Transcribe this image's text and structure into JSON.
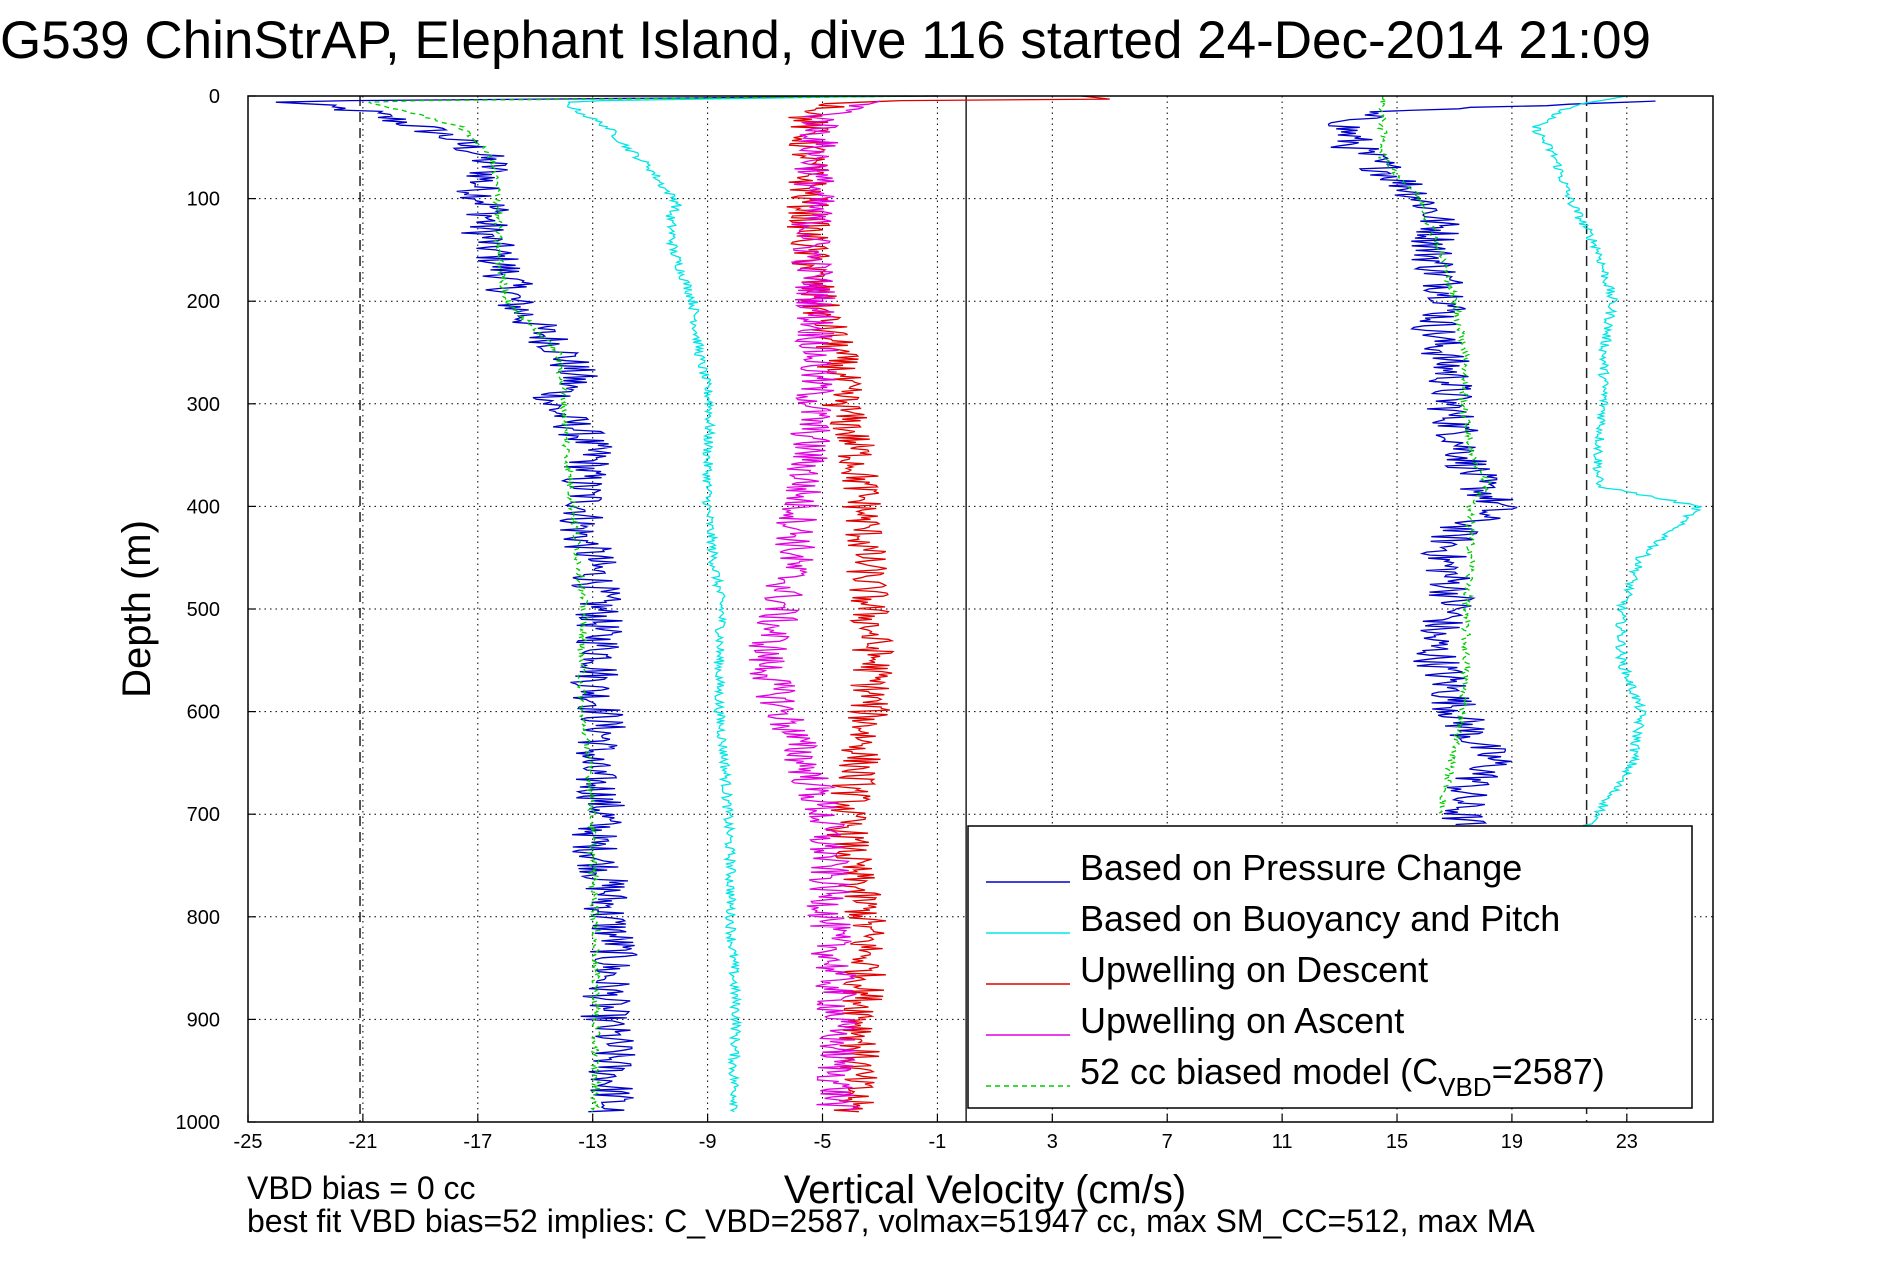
{
  "title": "G539 ChinStrAP, Elephant Island, dive 116 started 24-Dec-2014 21:09",
  "footer": {
    "line1": "VBD bias = 0 cc",
    "line2": "best fit VBD bias=52 implies: C_VBD=2587, volmax=51947 cc, max SM_CC=512, max MA"
  },
  "colors": {
    "pressure": "#0000c8",
    "buoyancy": "#00e5e5",
    "descent": "#e00000",
    "ascent": "#e000e0",
    "model": "#00cc00"
  },
  "chart_data": {
    "type": "line",
    "title": "G539 ChinStrAP, Elephant Island, dive 116 started 24-Dec-2014 21:09",
    "xlabel": "Vertical Velocity (cm/s)",
    "ylabel": "Depth (m)",
    "xlim": [
      -25,
      26
    ],
    "ylim": [
      0,
      1000
    ],
    "y_reversed": true,
    "grid": true,
    "xticks": [
      -25,
      -21,
      -17,
      -13,
      -9,
      -5,
      -1,
      3,
      7,
      11,
      15,
      19,
      23
    ],
    "yticks": [
      0,
      100,
      200,
      300,
      400,
      500,
      600,
      700,
      800,
      900,
      1000
    ],
    "legend_position": "bottom-right",
    "reference_lines": [
      {
        "x": -21.1,
        "style": "dashed"
      },
      {
        "x": 21.6,
        "style": "dashed"
      },
      {
        "x": 0,
        "style": "solid"
      }
    ],
    "series": [
      {
        "name": "Based on Pressure Change",
        "color": "#0000c8",
        "style": "solid",
        "segments": [
          {
            "depth": [
              0,
              5,
              15,
              30,
              40,
              55,
              70,
              90,
              110,
              130,
              150,
              175,
              200,
              225,
              250,
              275,
              300,
              325,
              350,
              375,
              400,
              425,
              450,
              475,
              500,
              525,
              550,
              575,
              600,
              625,
              650,
              675,
              700,
              725,
              750,
              775,
              800,
              825,
              850,
              875,
              900,
              925,
              950,
              975,
              990
            ],
            "velocity": [
              -1,
              -24,
              -21,
              -19,
              -18,
              -17,
              -16.5,
              -17,
              -16.5,
              -16.8,
              -16.5,
              -16,
              -15.8,
              -15,
              -14,
              -13.6,
              -14.5,
              -13.5,
              -13,
              -13.4,
              -13.2,
              -13.5,
              -13,
              -12.9,
              -12.8,
              -12.8,
              -12.6,
              -13,
              -12.7,
              -12.6,
              -13.2,
              -12.8,
              -12.6,
              -13,
              -12.7,
              -12.5,
              -12.5,
              -12.2,
              -12.4,
              -12.5,
              -12.6,
              -12.3,
              -12.4,
              -12.3,
              -12.5
            ]
          },
          {
            "depth": [
              5,
              15,
              30,
              50,
              70,
              90,
              110,
              130,
              150,
              175,
              200,
              225,
              250,
              275,
              300,
              325,
              350,
              375,
              400,
              425,
              450,
              475,
              500,
              525,
              550,
              575,
              600,
              625,
              650,
              675,
              700,
              710
            ],
            "velocity": [
              24,
              14,
              13.2,
              13.5,
              14.5,
              15.5,
              16.2,
              16.5,
              16.2,
              16.5,
              17,
              16.3,
              16.6,
              16.9,
              16.8,
              17.1,
              17.4,
              17.7,
              18.5,
              17,
              16.6,
              16.9,
              17,
              16.2,
              16.4,
              16.8,
              17.1,
              17.6,
              18.4,
              17.4,
              17.2,
              17.4
            ]
          }
        ]
      },
      {
        "name": "Based on Buoyancy and Pitch",
        "color": "#00e5e5",
        "style": "solid",
        "segments": [
          {
            "depth": [
              0,
              5,
              15,
              30,
              50,
              70,
              90,
              105,
              115,
              150,
              200,
              250,
              300,
              350,
              400,
              450,
              500,
              550,
              600,
              650,
              700,
              750,
              800,
              850,
              900,
              950,
              990
            ],
            "velocity": [
              -2,
              -14,
              -13.5,
              -12.5,
              -11.8,
              -11,
              -10.5,
              -10,
              -10.3,
              -10.2,
              -9.5,
              -9.3,
              -8.9,
              -9,
              -9,
              -8.8,
              -8.5,
              -8.6,
              -8.6,
              -8.4,
              -8.3,
              -8.2,
              -8.2,
              -8.1,
              -8,
              -8.1,
              -8
            ]
          },
          {
            "depth": [
              0,
              10,
              30,
              60,
              100,
              150,
              200,
              250,
              300,
              350,
              380,
              400,
              450,
              500,
              550,
              600,
              650,
              700,
              715
            ],
            "velocity": [
              23,
              21,
              19.8,
              20.5,
              21,
              22,
              22.5,
              22.2,
              22.2,
              22,
              22,
              25.5,
              23.5,
              22.8,
              22.8,
              23.5,
              23.2,
              22,
              21.5
            ]
          }
        ]
      },
      {
        "name": "Upwelling on Descent",
        "color": "#e00000",
        "style": "solid",
        "segments": [
          {
            "depth": [
              0,
              3,
              5,
              20,
              50,
              100,
              150,
              200,
              250,
              300,
              350,
              400,
              450,
              500,
              550,
              600,
              650,
              700,
              750,
              800,
              850,
              900,
              950,
              990
            ],
            "velocity": [
              4,
              5,
              -4,
              -5.5,
              -5.5,
              -5.5,
              -5.5,
              -5.2,
              -4.5,
              -4.3,
              -3.8,
              -3.6,
              -3.5,
              -3.4,
              -3.2,
              -3.4,
              -3.7,
              -4.2,
              -4,
              -3.5,
              -3.5,
              -3.6,
              -3.8,
              -4
            ]
          }
        ]
      },
      {
        "name": "Upwelling on Ascent",
        "color": "#e000e0",
        "style": "solid",
        "segments": [
          {
            "depth": [
              5,
              20,
              50,
              100,
              150,
              200,
              250,
              300,
              350,
              400,
              450,
              500,
              550,
              600,
              650,
              700,
              750,
              800,
              850,
              900,
              950,
              990
            ],
            "velocity": [
              -3,
              -5,
              -5.2,
              -5.3,
              -5.4,
              -5.2,
              -5.2,
              -5.3,
              -5.5,
              -5.8,
              -6,
              -6.5,
              -7,
              -6.4,
              -5.6,
              -5,
              -4.8,
              -4.8,
              -4.6,
              -4.5,
              -4.5,
              -4.5
            ]
          }
        ]
      },
      {
        "name": "52 cc biased model (C_VBD=2587)",
        "color": "#00cc00",
        "style": "dashed",
        "segments": [
          {
            "depth": [
              0,
              5,
              15,
              30,
              60,
              100,
              150,
              200,
              250,
              300,
              350,
              400,
              450,
              500,
              550,
              600,
              650,
              700,
              750,
              800,
              850,
              900,
              950,
              990
            ],
            "velocity": [
              -1,
              -21,
              -19.5,
              -17.6,
              -16.5,
              -16.3,
              -16.3,
              -16,
              -14.2,
              -14,
              -13.9,
              -13.7,
              -13.5,
              -13.3,
              -13.4,
              -13.4,
              -13.1,
              -13,
              -13,
              -12.9,
              -12.9,
              -12.9,
              -12.9,
              -12.9
            ]
          },
          {
            "depth": [
              0,
              10,
              30,
              60,
              100,
              150,
              200,
              250,
              300,
              350,
              380,
              400,
              450,
              500,
              550,
              600,
              650,
              700
            ],
            "velocity": [
              14.5,
              14.5,
              14.5,
              14.5,
              15.8,
              16.5,
              17,
              17.4,
              17.3,
              17.6,
              18.2,
              17.5,
              17.6,
              17.4,
              17.4,
              17.3,
              16.9,
              16.5
            ]
          }
        ]
      }
    ]
  }
}
